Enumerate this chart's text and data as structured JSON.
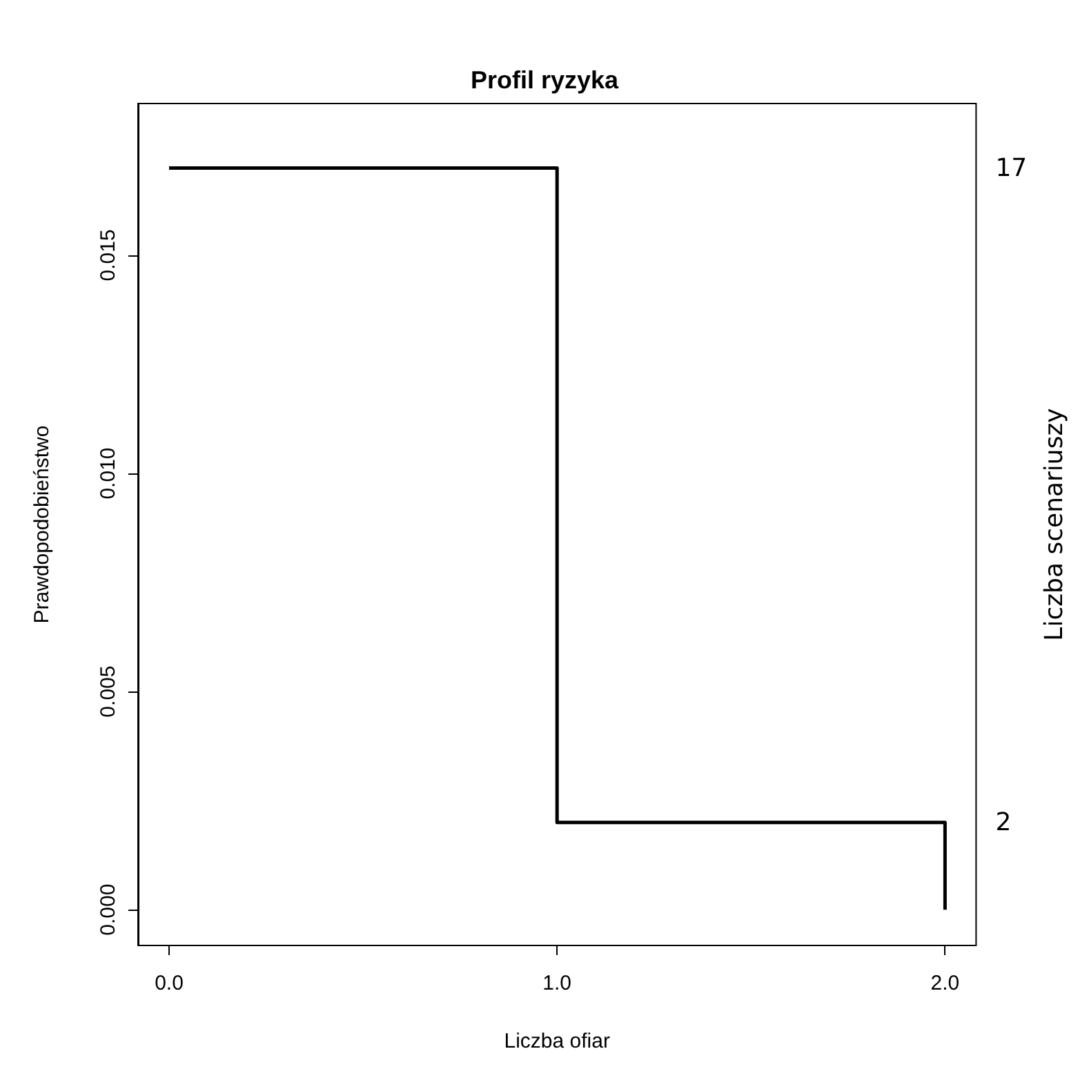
{
  "chart_data": {
    "type": "step",
    "title": "Profil ryzyka",
    "xlabel": "Liczba ofiar",
    "ylabel": "Prawdopodobieństwo",
    "y2label": "Liczba scenariuszy",
    "x": [
      0,
      1,
      2,
      2
    ],
    "values": [
      0.017,
      0.002,
      0.002,
      0
    ],
    "color": "#000000",
    "xlim": [
      -0.08,
      2.08
    ],
    "xticks": [
      {
        "value": 0,
        "label": "0.0"
      },
      {
        "value": 1,
        "label": "1.0"
      },
      {
        "value": 2,
        "label": "2.0"
      }
    ],
    "ylim": [
      -0.00082,
      0.01848
    ],
    "yticks": [
      {
        "value": 0,
        "label": "0.000"
      },
      {
        "value": 0.005,
        "label": "0.005"
      },
      {
        "value": 0.01,
        "label": "0.010"
      },
      {
        "value": 0.015,
        "label": "0.015"
      }
    ],
    "y2lim": [
      -0.82,
      18.48
    ],
    "y2ticks": [
      2,
      17
    ],
    "grid": false
  }
}
